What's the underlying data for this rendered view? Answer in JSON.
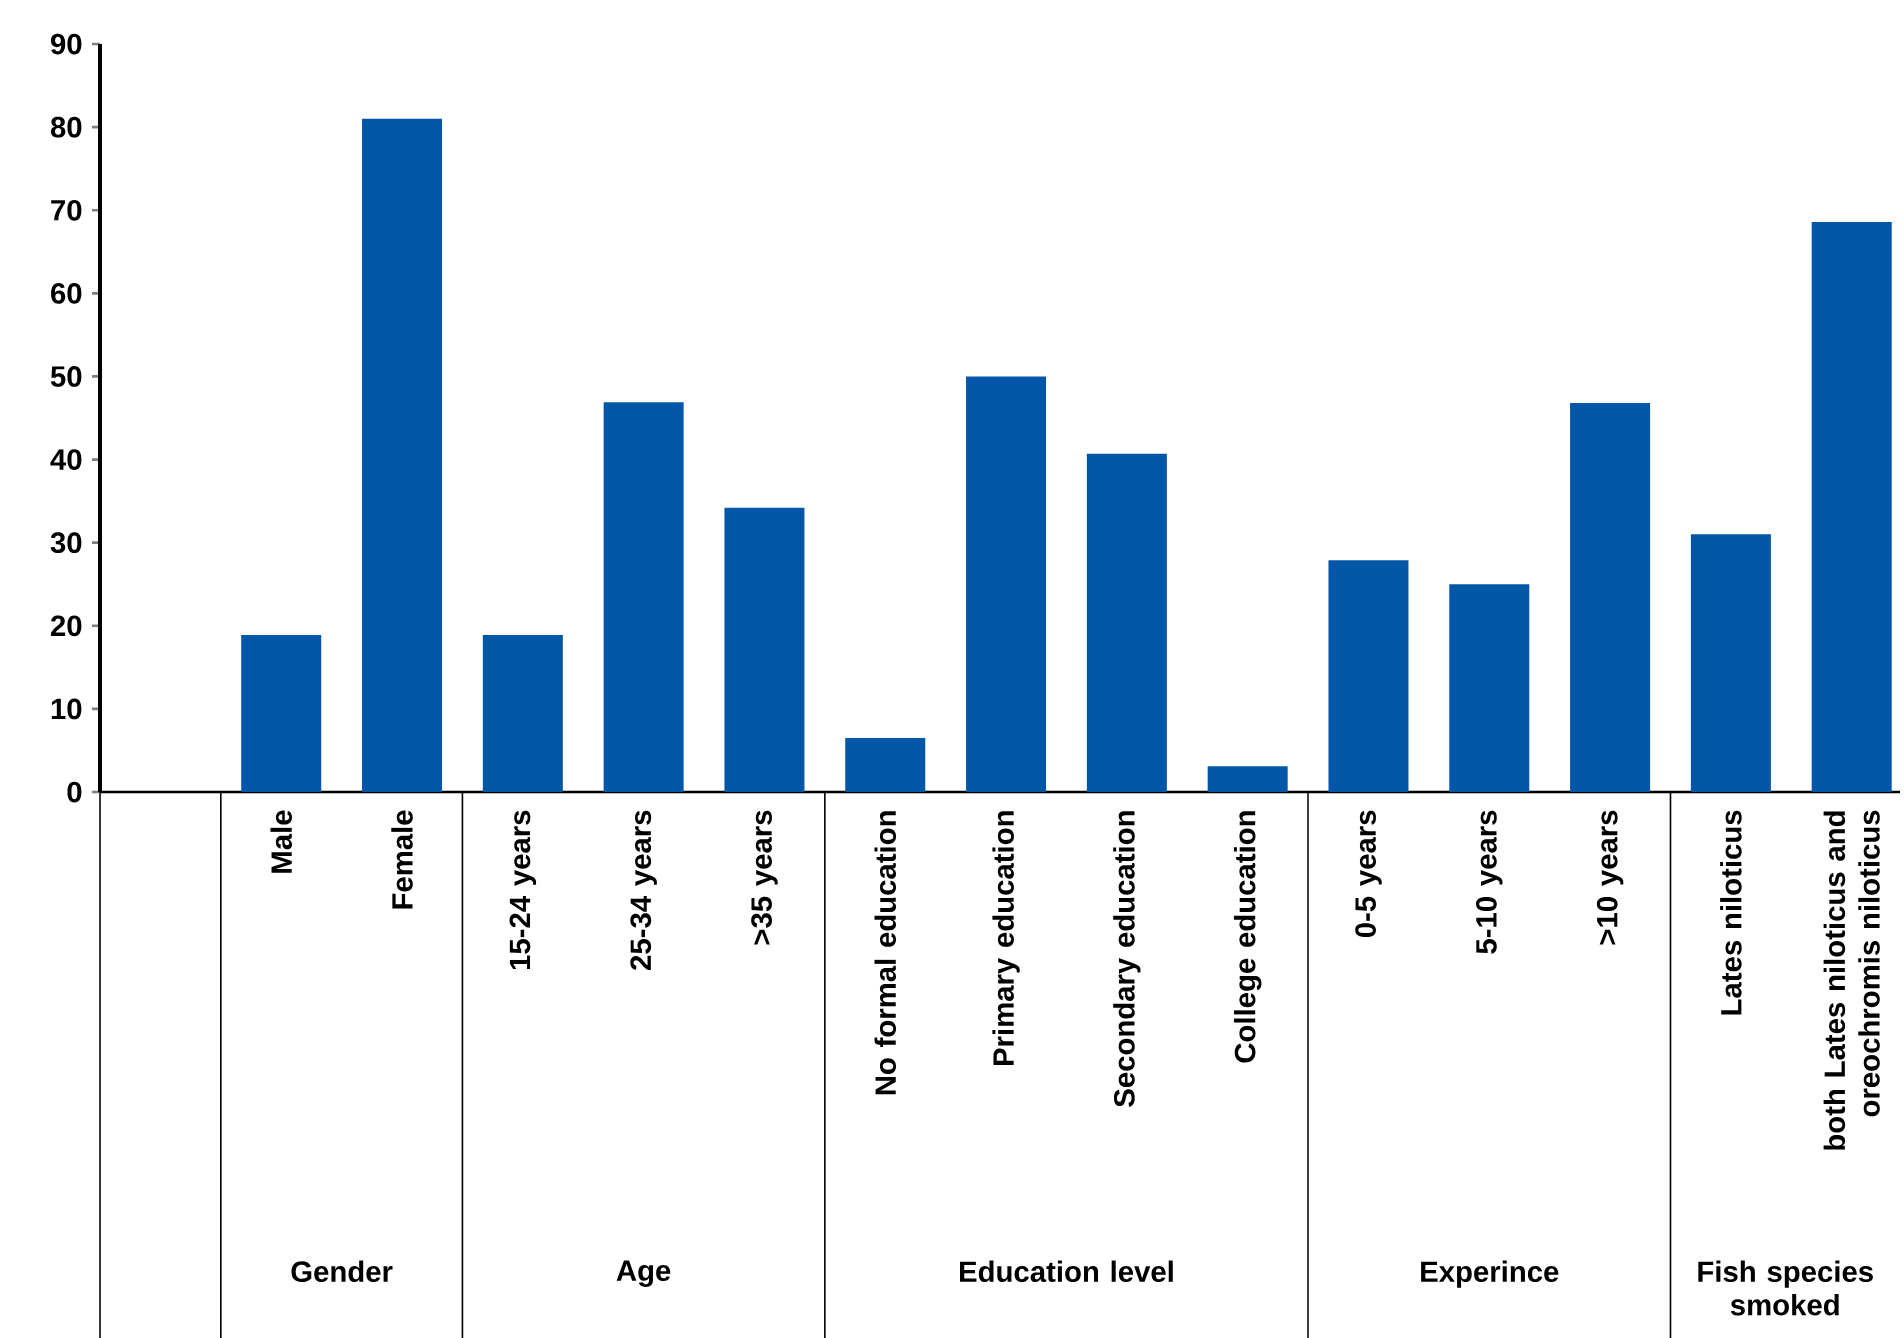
{
  "chart_data": {
    "type": "bar",
    "categories": [
      null,
      "Male",
      "Female",
      "15-24 years",
      "25-34 years",
      ">35 years",
      "No formal education",
      "Primary education",
      "Secondary education",
      "College education",
      "0-5 years",
      "5-10 years",
      ">10 years",
      "Lates niloticus",
      "both Lates niloticus and oreochromis niloticus"
    ],
    "values": [
      null,
      18.9,
      81,
      18.9,
      46.9,
      34.2,
      6.5,
      50,
      40.7,
      3.1,
      27.9,
      25,
      46.8,
      31,
      68.6
    ],
    "color": "#0356a8",
    "ylim": [
      0,
      90
    ],
    "yticks": [
      0,
      10,
      20,
      30,
      40,
      50,
      60,
      70,
      80,
      90
    ],
    "annotations": [
      "Gender",
      "Age",
      "Education level",
      "Experince",
      "Fish species smoked"
    ]
  }
}
